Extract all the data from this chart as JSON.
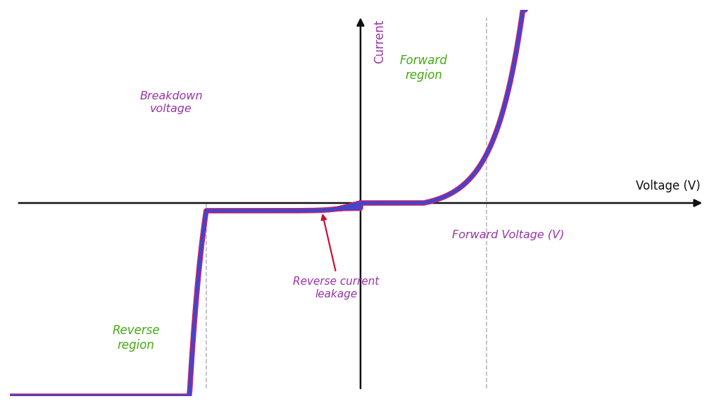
{
  "background_color": "#ffffff",
  "curve_color_blue": "#4444cc",
  "curve_color_red": "#cc2266",
  "axis_color": "#111111",
  "forward_region_color": "#44aa11",
  "reverse_region_color": "#44aa11",
  "breakdown_voltage_color": "#9933aa",
  "forward_voltage_color": "#9933aa",
  "reverse_leakage_color": "#9933aa",
  "reverse_leakage_arrow_color": "#cc1133",
  "voltage_label_color": "#111111",
  "current_label_color": "#9933aa",
  "dashed_line_color": "#bbbbbb",
  "xlabel": "Voltage (V)",
  "ylabel": "Current",
  "forward_region_label": "Forward\nregion",
  "reverse_region_label": "Reverse\nregion",
  "breakdown_voltage_label": "Breakdown\nvoltage",
  "forward_voltage_label": "Forward Voltage (V)",
  "reverse_leakage_label": "Reverse current\nleakage",
  "xlim": [
    -5.0,
    5.0
  ],
  "ylim": [
    -5.0,
    5.0
  ],
  "breakdown_x": -2.2,
  "forward_knee_x": 1.8,
  "curve_lw_outer": 5.5,
  "curve_lw_inner": 3.5
}
